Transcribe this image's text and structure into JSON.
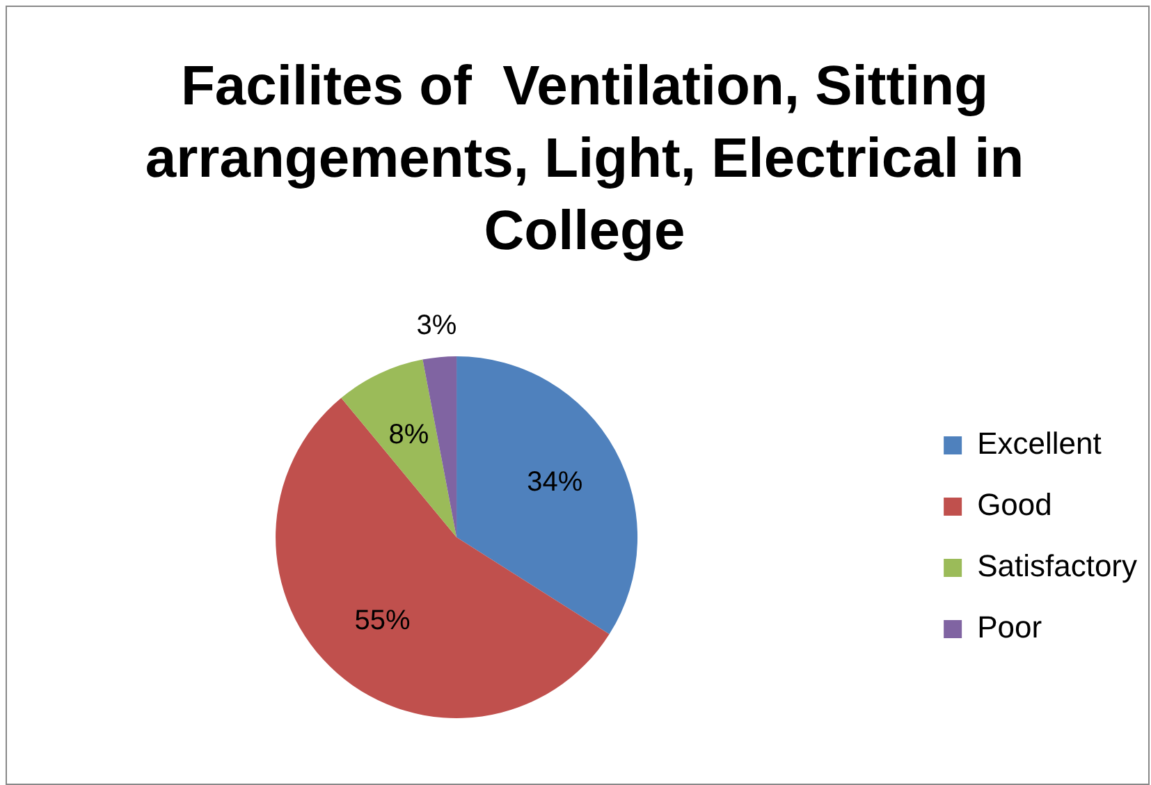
{
  "chart_data": {
    "type": "pie",
    "title": "Facilites of  Ventilation, Sitting arrangements, Light, Electrical in College",
    "categories": [
      "Excellent",
      "Good",
      "Satisfactory",
      "Poor"
    ],
    "values": [
      34,
      55,
      8,
      3
    ],
    "colors": [
      "#4f81bd",
      "#c0504d",
      "#9bbb59",
      "#8064a2"
    ],
    "value_labels": [
      "34%",
      "55%",
      "8%",
      "3%"
    ],
    "legend": "right"
  }
}
